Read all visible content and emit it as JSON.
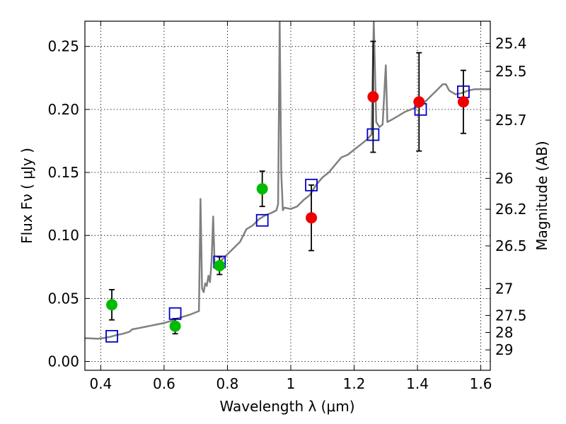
{
  "chart_data": {
    "type": "scatter",
    "title": "",
    "xlabel": "Wavelength  λ (μm)",
    "ylabel": "Flux  Fν  ( μJy )",
    "y2label": "Magnitude (AB)",
    "xlim": [
      0.35,
      1.63
    ],
    "ylim": [
      -0.007,
      0.27
    ],
    "grid": true,
    "xticks": [
      0.4,
      0.6,
      0.8,
      1.0,
      1.2,
      1.4,
      1.6
    ],
    "xtick_labels": [
      "0.4",
      "0.6",
      "0.8",
      "1",
      "1.2",
      "1.4",
      "1.6"
    ],
    "yticks": [
      0.0,
      0.05,
      0.1,
      0.15,
      0.2,
      0.25
    ],
    "ytick_labels": [
      "0.00",
      "0.05",
      "0.10",
      "0.15",
      "0.20",
      "0.25"
    ],
    "y2ticks": [
      {
        "label": "25.4",
        "flux": 0.2524
      },
      {
        "label": "25.5",
        "flux": 0.2302
      },
      {
        "label": "25.7",
        "flux": 0.1915
      },
      {
        "label": "26",
        "flux": 0.1453
      },
      {
        "label": "26.2",
        "flux": 0.1208
      },
      {
        "label": "26.5",
        "flux": 0.0917
      },
      {
        "label": "27",
        "flux": 0.0578
      },
      {
        "label": "27.5",
        "flux": 0.0365
      },
      {
        "label": "28",
        "flux": 0.023
      },
      {
        "label": "29",
        "flux": 0.0092
      }
    ],
    "colors": {
      "model": "#808080",
      "green": "#00bb00",
      "red": "#ee0000",
      "square": "#0000cc",
      "errorbar": "#000000"
    },
    "series": [
      {
        "kind": "model-spectrum",
        "points": [
          [
            0.35,
            0.0185
          ],
          [
            0.37,
            0.0183
          ],
          [
            0.39,
            0.018
          ],
          [
            0.41,
            0.0187
          ],
          [
            0.43,
            0.0195
          ],
          [
            0.45,
            0.021
          ],
          [
            0.47,
            0.022
          ],
          [
            0.49,
            0.0235
          ],
          [
            0.5,
            0.0255
          ],
          [
            0.52,
            0.0265
          ],
          [
            0.54,
            0.0275
          ],
          [
            0.56,
            0.0285
          ],
          [
            0.58,
            0.0295
          ],
          [
            0.6,
            0.0305
          ],
          [
            0.62,
            0.032
          ],
          [
            0.64,
            0.034
          ],
          [
            0.66,
            0.0355
          ],
          [
            0.68,
            0.037
          ],
          [
            0.7,
            0.039
          ],
          [
            0.71,
            0.04
          ],
          [
            0.715,
            0.129
          ],
          [
            0.72,
            0.058
          ],
          [
            0.725,
            0.055
          ],
          [
            0.73,
            0.062
          ],
          [
            0.735,
            0.06
          ],
          [
            0.74,
            0.068
          ],
          [
            0.745,
            0.063
          ],
          [
            0.75,
            0.08
          ],
          [
            0.755,
            0.115
          ],
          [
            0.76,
            0.074
          ],
          [
            0.77,
            0.078
          ],
          [
            0.78,
            0.08
          ],
          [
            0.8,
            0.085
          ],
          [
            0.82,
            0.09
          ],
          [
            0.84,
            0.095
          ],
          [
            0.86,
            0.105
          ],
          [
            0.88,
            0.108
          ],
          [
            0.9,
            0.113
          ],
          [
            0.92,
            0.116
          ],
          [
            0.94,
            0.118
          ],
          [
            0.955,
            0.12
          ],
          [
            0.96,
            0.125
          ],
          [
            0.965,
            0.27
          ],
          [
            0.97,
            0.15
          ],
          [
            0.975,
            0.12
          ],
          [
            0.98,
            0.122
          ],
          [
            1.0,
            0.121
          ],
          [
            1.02,
            0.123
          ],
          [
            1.04,
            0.128
          ],
          [
            1.06,
            0.132
          ],
          [
            1.08,
            0.14
          ],
          [
            1.1,
            0.146
          ],
          [
            1.12,
            0.15
          ],
          [
            1.14,
            0.156
          ],
          [
            1.16,
            0.162
          ],
          [
            1.18,
            0.164
          ],
          [
            1.2,
            0.168
          ],
          [
            1.22,
            0.172
          ],
          [
            1.24,
            0.176
          ],
          [
            1.255,
            0.18
          ],
          [
            1.262,
            0.27
          ],
          [
            1.27,
            0.19
          ],
          [
            1.28,
            0.186
          ],
          [
            1.29,
            0.188
          ],
          [
            1.3,
            0.235
          ],
          [
            1.305,
            0.19
          ],
          [
            1.32,
            0.192
          ],
          [
            1.34,
            0.195
          ],
          [
            1.36,
            0.198
          ],
          [
            1.38,
            0.2
          ],
          [
            1.4,
            0.202
          ],
          [
            1.42,
            0.205
          ],
          [
            1.44,
            0.21
          ],
          [
            1.46,
            0.215
          ],
          [
            1.48,
            0.22
          ],
          [
            1.49,
            0.22
          ],
          [
            1.5,
            0.215
          ],
          [
            1.52,
            0.212
          ],
          [
            1.54,
            0.213
          ],
          [
            1.56,
            0.215
          ],
          [
            1.58,
            0.216
          ],
          [
            1.6,
            0.216
          ],
          [
            1.63,
            0.216
          ]
        ]
      },
      {
        "kind": "photometry-green",
        "points": [
          {
            "x": 0.435,
            "y": 0.045,
            "yerr": 0.012
          },
          {
            "x": 0.635,
            "y": 0.028,
            "yerr": 0.006
          },
          {
            "x": 0.775,
            "y": 0.076,
            "yerr": 0.007
          },
          {
            "x": 0.91,
            "y": 0.137,
            "yerr": 0.014
          }
        ]
      },
      {
        "kind": "photometry-red",
        "points": [
          {
            "x": 1.065,
            "y": 0.114,
            "yerr": 0.026
          },
          {
            "x": 1.26,
            "y": 0.21,
            "yerr": 0.044
          },
          {
            "x": 1.405,
            "y": 0.206,
            "yerr": 0.039
          },
          {
            "x": 1.545,
            "y": 0.206,
            "yerr": 0.025
          }
        ]
      },
      {
        "kind": "model-synthetic-photometry",
        "points": [
          {
            "x": 0.435,
            "y": 0.02
          },
          {
            "x": 0.635,
            "y": 0.038
          },
          {
            "x": 0.775,
            "y": 0.079
          },
          {
            "x": 0.91,
            "y": 0.112
          },
          {
            "x": 1.065,
            "y": 0.14
          },
          {
            "x": 1.26,
            "y": 0.18
          },
          {
            "x": 1.41,
            "y": 0.2
          },
          {
            "x": 1.545,
            "y": 0.214
          }
        ]
      }
    ]
  }
}
